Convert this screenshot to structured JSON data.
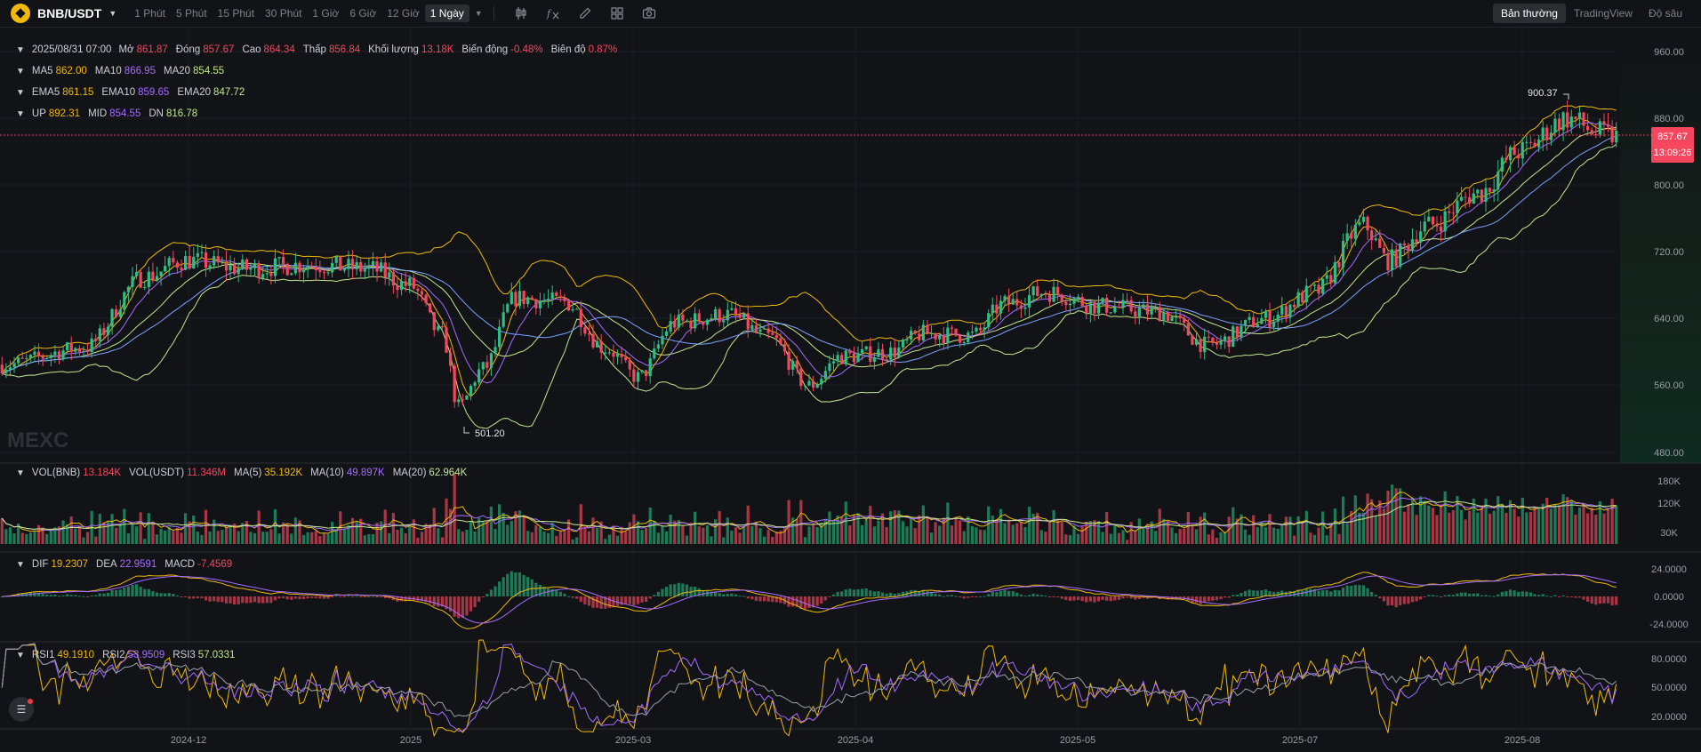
{
  "header": {
    "pair": "BNB/USDT",
    "intervals": [
      "1 Phút",
      "5 Phút",
      "15 Phút",
      "30 Phút",
      "1 Giờ",
      "6 Giờ",
      "12 Giờ",
      "1 Ngày"
    ],
    "active_interval": "1 Ngày",
    "views": [
      "Bản thường",
      "TradingView",
      "Độ sâu"
    ],
    "active_view": "Bản thường"
  },
  "ohlc": {
    "date": "2025/08/31 07:00",
    "open_label": "Mở",
    "open": "861.87",
    "close_label": "Đóng",
    "close": "857.67",
    "high_label": "Cao",
    "high": "864.34",
    "low_label": "Thấp",
    "low": "856.84",
    "volume_label": "Khối lượng",
    "volume": "13.18K",
    "change_label": "Biến động",
    "change": "-0.48%",
    "amplitude_label": "Biên độ",
    "amplitude": "0.87%"
  },
  "ma": {
    "ma5_label": "MA5",
    "ma5": "862.00",
    "ma10_label": "MA10",
    "ma10": "866.95",
    "ma20_label": "MA20",
    "ma20": "854.55"
  },
  "ema": {
    "ema5_label": "EMA5",
    "ema5": "861.15",
    "ema10_label": "EMA10",
    "ema10": "859.65",
    "ema20_label": "EMA20",
    "ema20": "847.72"
  },
  "boll": {
    "up_label": "UP",
    "up": "892.31",
    "mid_label": "MID",
    "mid": "854.55",
    "dn_label": "DN",
    "dn": "816.78"
  },
  "vol": {
    "vol_bnb_label": "VOL(BNB)",
    "vol_bnb": "13.184K",
    "vol_usdt_label": "VOL(USDT)",
    "vol_usdt": "11.346M",
    "ma5_label": "MA(5)",
    "ma5": "35.192K",
    "ma10_label": "MA(10)",
    "ma10": "49.897K",
    "ma20_label": "MA(20)",
    "ma20": "62.964K"
  },
  "macd": {
    "dif_label": "DIF",
    "dif": "19.2307",
    "dea_label": "DEA",
    "dea": "22.9591",
    "macd_label": "MACD",
    "macd": "-7.4569"
  },
  "rsi": {
    "rsi1_label": "RSI1",
    "rsi1": "49.1910",
    "rsi2_label": "RSI2",
    "rsi2": "53.9509",
    "rsi3_label": "RSI3",
    "rsi3": "57.0331"
  },
  "price_axis": [
    "960.00",
    "880.00",
    "800.00",
    "720.00",
    "640.00",
    "560.00",
    "480.00"
  ],
  "vol_axis": [
    "180K",
    "120K",
    "30K"
  ],
  "macd_axis": [
    "24.0000",
    "0.0000",
    "-24.0000"
  ],
  "rsi_axis": [
    "80.0000",
    "50.0000",
    "20.0000"
  ],
  "time_axis": [
    "2024-12",
    "2025",
    "2025-03",
    "2025-04",
    "2025-05",
    "2025-07",
    "2025-08"
  ],
  "last_price": "857.67",
  "countdown": "13:09:26",
  "high_marker": "900.37",
  "low_marker": "501.20",
  "watermark": "MEXC",
  "colors": {
    "up": "#2ebd85",
    "down": "#f6465d",
    "ma5": "#f0b90b",
    "ma10": "#a66bff",
    "ma20": "#c3e88d",
    "background": "#121317"
  }
}
